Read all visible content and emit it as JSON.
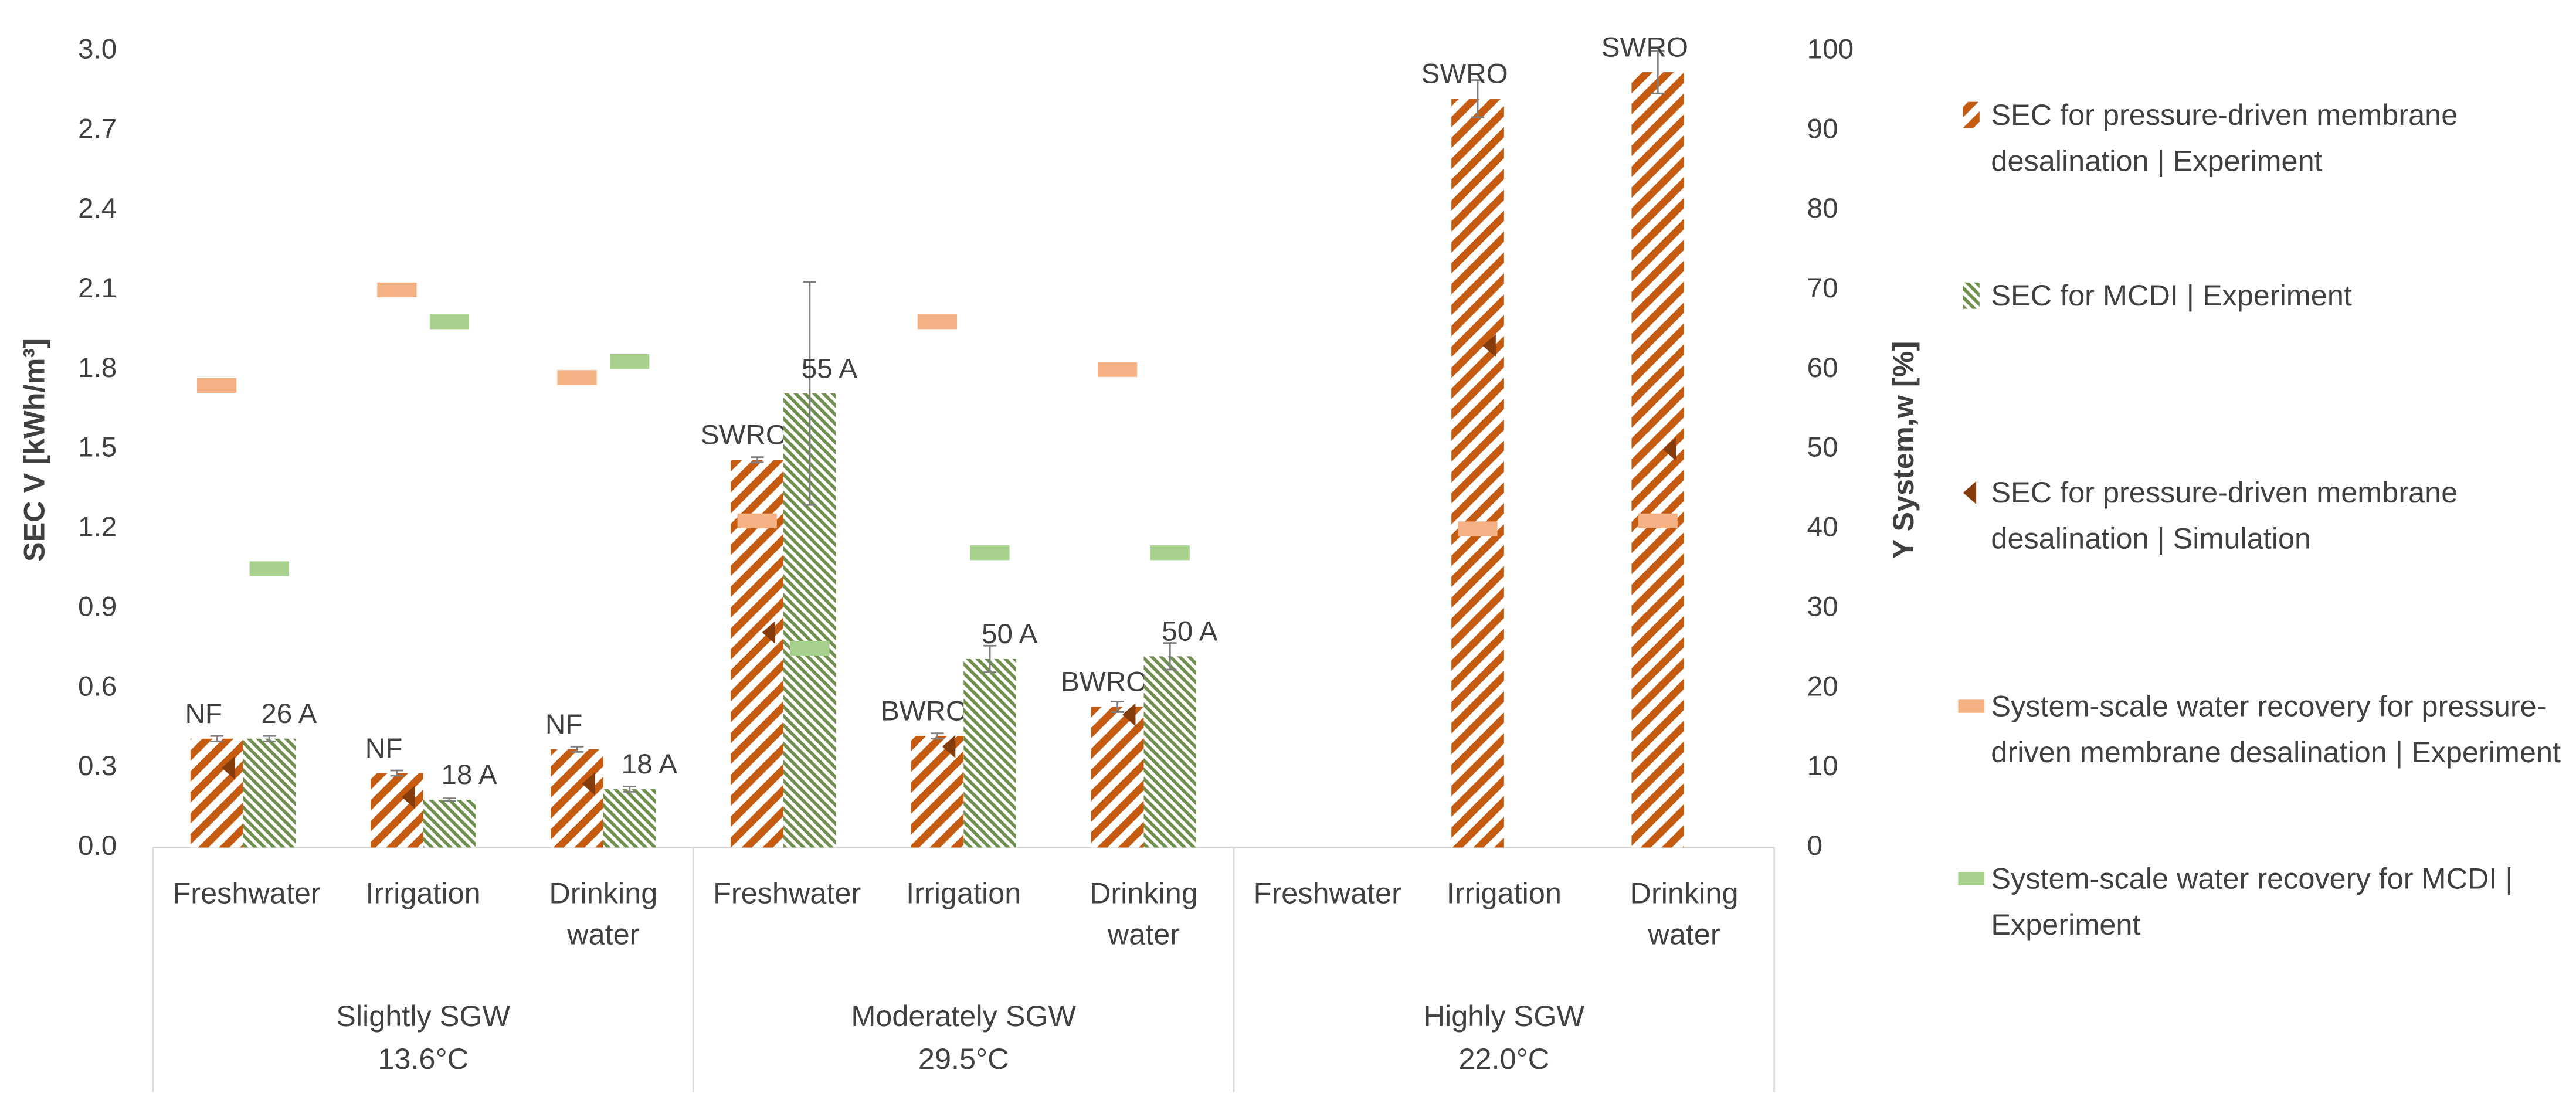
{
  "chart_data": {
    "type": "bar",
    "y_label": "SEC V [kWh/m³]",
    "y2_label": "Y System,w [%]",
    "categories": [
      "Freshwater",
      "Irrigation",
      "Drinking water",
      "Freshwater",
      "Irrigation",
      "Drinking water",
      "Freshwater",
      "Irrigation",
      "Drinking water"
    ],
    "groups": [
      {
        "name": "Slightly SGW",
        "temp": "13.6°C"
      },
      {
        "name": "Moderately SGW",
        "temp": "29.5°C"
      },
      {
        "name": "Highly SGW",
        "temp": "22.0°C"
      }
    ],
    "ylim": [
      0,
      3.0
    ],
    "yticks": [
      {
        "value": 0,
        "label": "0.0"
      },
      0.3,
      0.6,
      0.9,
      1.2,
      1.5,
      1.8,
      2.1,
      2.4,
      2.7,
      {
        "value": 3,
        "label": "3.0"
      }
    ],
    "y2lim": [
      0,
      100
    ],
    "y2ticks": [
      0,
      10,
      20,
      30,
      40,
      50,
      60,
      70,
      80,
      90,
      100
    ],
    "series": [
      {
        "name": "SEC for pressure-driven membrane desalination | Experiment",
        "kind": "bar",
        "color": "#c55a11",
        "values": [
          0.41,
          0.28,
          0.37,
          1.46,
          0.42,
          0.53,
          null,
          2.82,
          2.92
        ],
        "errors": [
          0.01,
          0.01,
          0.01,
          0.01,
          0.01,
          0.02,
          null,
          0.07,
          0.08
        ],
        "bar_labels": [
          "NF",
          "NF",
          "NF",
          "SWRO",
          "BWRO",
          "BWRO",
          null,
          "SWRO",
          "SWRO"
        ]
      },
      {
        "name": "SEC for MCDI | Experiment",
        "kind": "bar",
        "color": "#6f8f4e",
        "values": [
          0.41,
          0.18,
          0.22,
          1.71,
          0.71,
          0.72,
          null,
          null,
          null
        ],
        "errors": [
          0.01,
          0.005,
          0.01,
          0.42,
          0.05,
          0.05,
          null,
          null,
          null
        ],
        "bar_labels": [
          "26 A",
          "18 A",
          "18 A",
          "55 A",
          "50 A",
          "50 A",
          null,
          null,
          null
        ]
      },
      {
        "name": "SEC for pressure-driven membrane desalination | Simulation",
        "kind": "triangle",
        "color": "#843c0c",
        "values": [
          0.3,
          0.19,
          0.24,
          0.81,
          0.38,
          0.5,
          null,
          1.89,
          1.5
        ]
      },
      {
        "name": "System-scale water recovery for pressure-driven membrane desalination | Experiment",
        "kind": "dash",
        "axis": "y2",
        "color": "#f4b183",
        "values": [
          58,
          70,
          59,
          41,
          66,
          60,
          null,
          40,
          41
        ]
      },
      {
        "name": "System-scale water recovery for MCDI | Experiment",
        "kind": "dash",
        "axis": "y2",
        "color": "#a9d18e",
        "values": [
          35,
          66,
          61,
          25,
          37,
          37,
          null,
          null,
          null
        ]
      }
    ]
  }
}
